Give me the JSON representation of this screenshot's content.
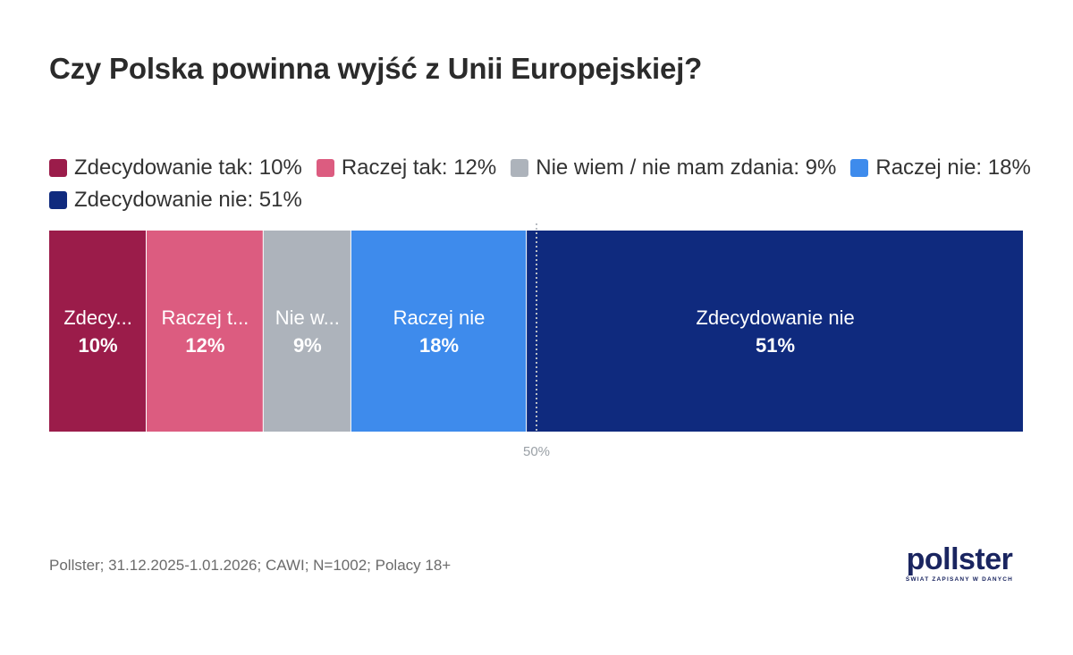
{
  "chart_data": {
    "type": "bar",
    "orientation": "horizontal-stacked-100",
    "title": "Czy Polska powinna wyjść z Unii Europejskiej?",
    "legend_position": "top-left",
    "legend": [
      "Zdecydowanie tak: 10%",
      "Raczej tak: 12%",
      "Nie wiem / nie mam zdania: 9%",
      "Raczej nie: 18%",
      "Zdecydowanie nie: 51%"
    ],
    "segments": [
      {
        "label": "Zdecy...",
        "value": 10,
        "value_label": "10%",
        "color": "#9b1c4a"
      },
      {
        "label": "Raczej t...",
        "value": 12,
        "value_label": "12%",
        "color": "#dc5c80"
      },
      {
        "label": "Nie w...",
        "value": 9,
        "value_label": "9%",
        "color": "#adb3bb"
      },
      {
        "label": "Raczej nie",
        "value": 18,
        "value_label": "18%",
        "color": "#3e8bec"
      },
      {
        "label": "Zdecydowanie nie",
        "value": 51,
        "value_label": "51%",
        "color": "#0f2a7e"
      }
    ],
    "reference_line": {
      "value": 50,
      "label": "50%"
    },
    "xlim": [
      0,
      100
    ]
  },
  "footer": {
    "source": "Pollster; 31.12.2025-1.01.2026; CAWI; N=1002; Polacy 18+"
  },
  "logo": {
    "name": "pollster",
    "tagline": "ŚWIAT ZAPISANY W DANYCH"
  }
}
